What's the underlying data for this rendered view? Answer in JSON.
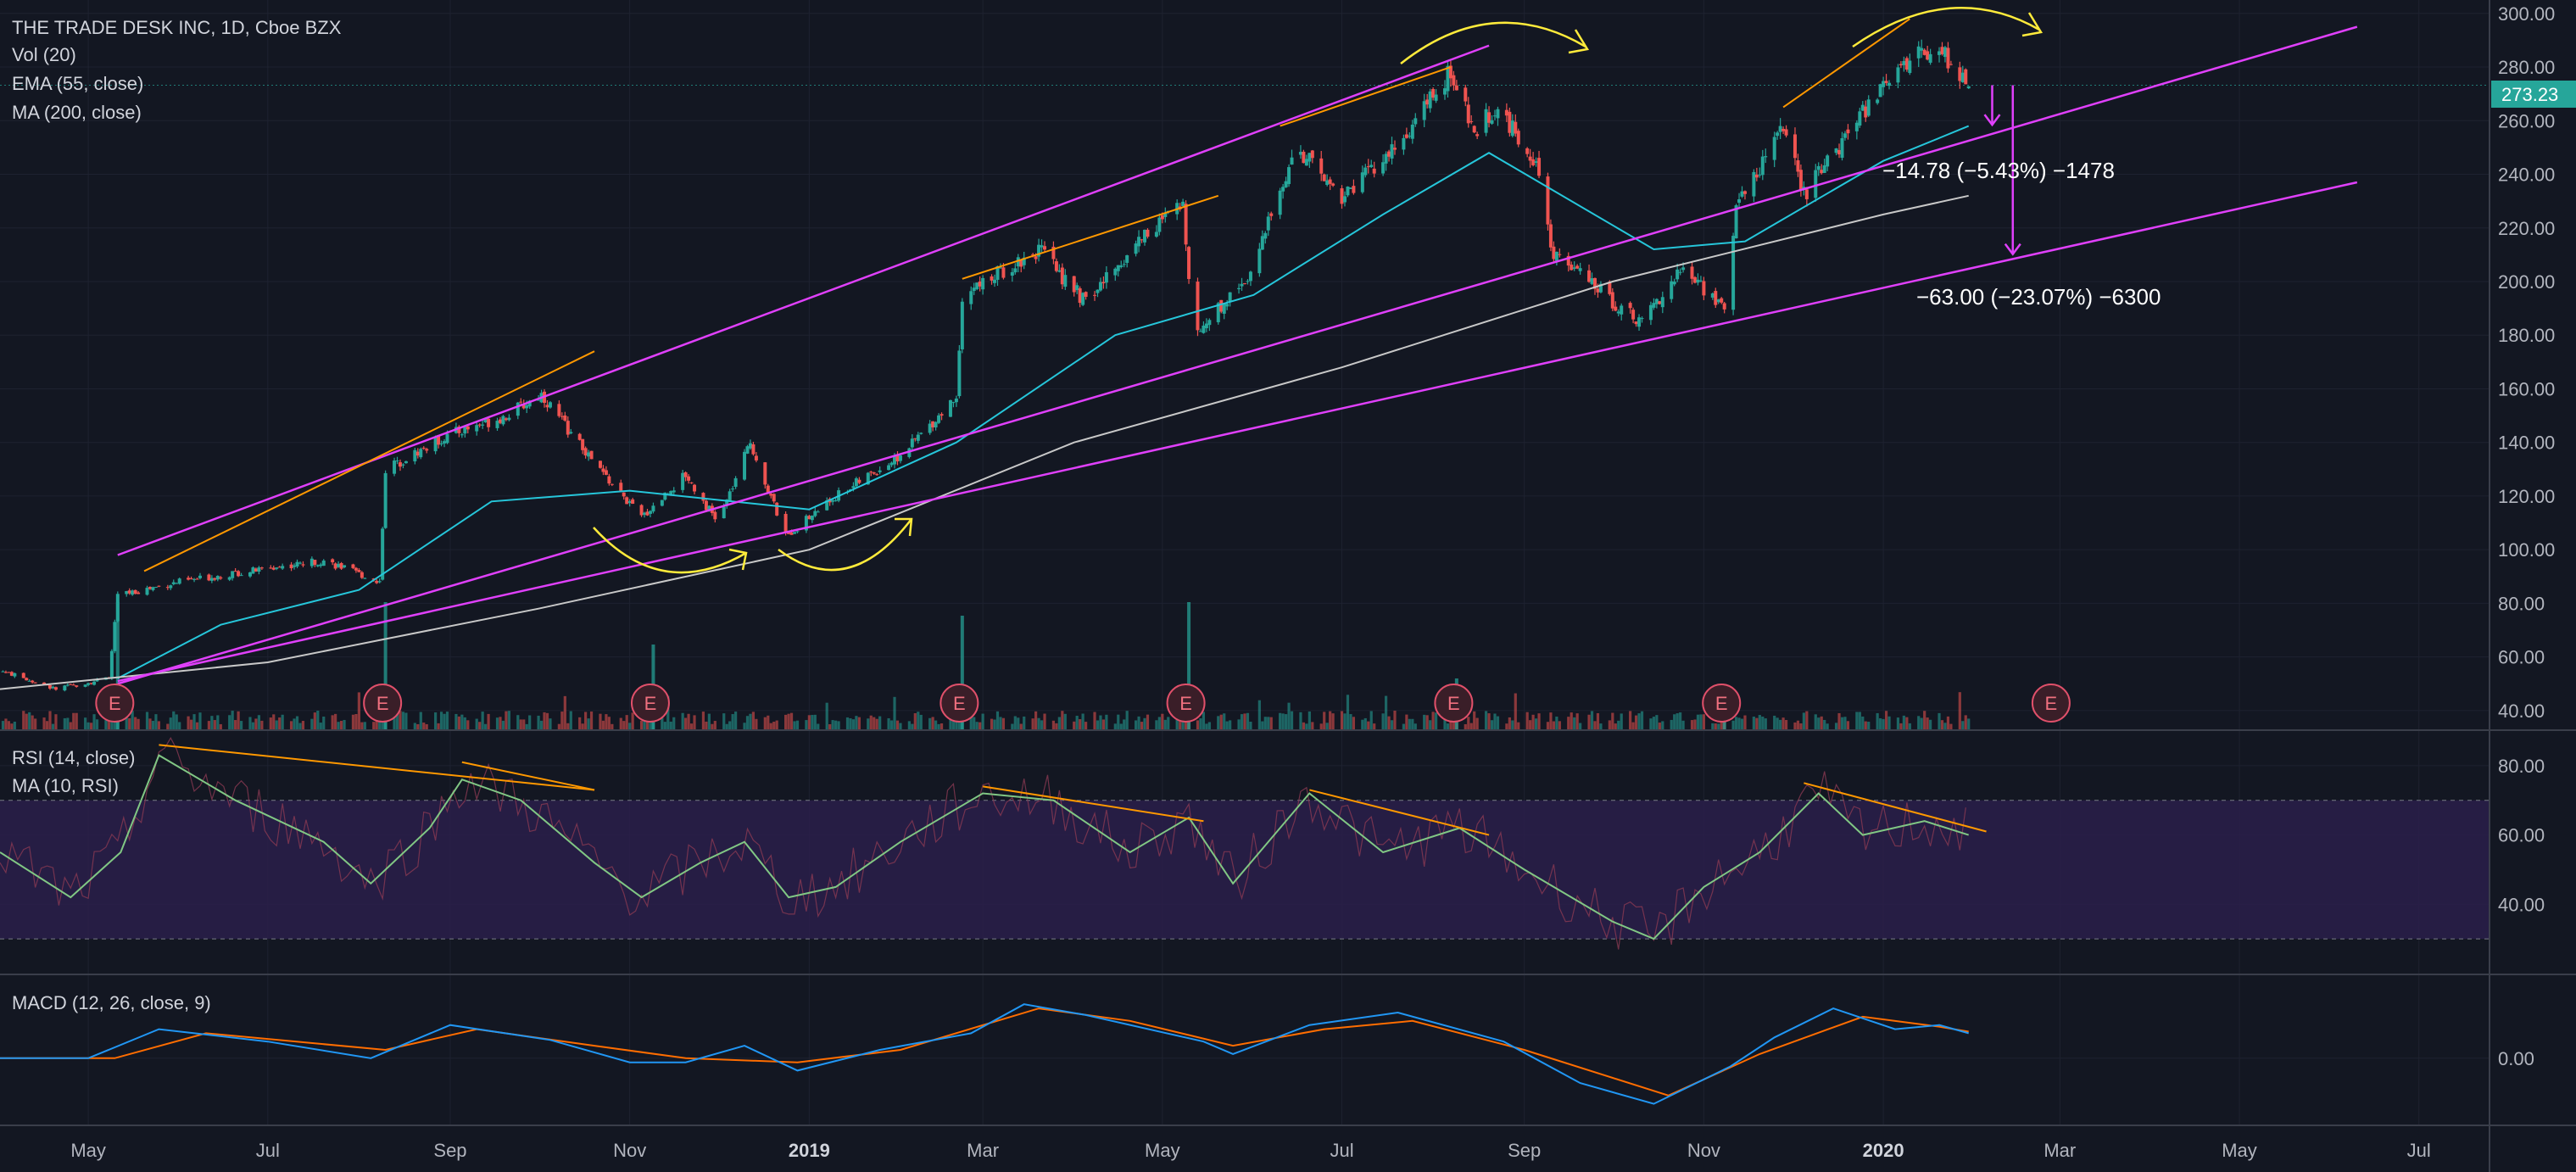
{
  "header": {
    "title": "THE TRADE DESK INC, 1D, Cboe BZX",
    "indicators": [
      "Vol (20)",
      "EMA (55, close)",
      "MA (200, close)"
    ]
  },
  "rsi_panel": {
    "labels": [
      "RSI (14, close)",
      "MA (10, RSI)"
    ]
  },
  "macd_panel": {
    "label": "MACD (12, 26, close, 9)"
  },
  "price_badge": "273.23",
  "annotations": {
    "drop_small": "−14.78 (−5.43%) −1478",
    "drop_large": "−63.00 (−23.07%) −6300"
  },
  "earnings_marker": "E",
  "colors": {
    "background": "#131722",
    "up": "#26a69a",
    "down": "#ef5350",
    "ema": "#26c6da",
    "ma": "#c8c8c8",
    "channel": "#e040fb",
    "trend": "#ff9800",
    "arc": "#ffeb3b",
    "rsi": "#81c784",
    "macd": "#2196f3",
    "signal": "#ff6d00",
    "badge": "#26a69a"
  },
  "chart_data": [
    {
      "type": "candlestick",
      "title": "THE TRADE DESK INC, 1D, Cboe BZX",
      "x_ticks": [
        "May",
        "Jul",
        "Sep",
        "Nov",
        "2019",
        "Mar",
        "May",
        "Jul",
        "Sep",
        "Nov",
        "2020",
        "Mar",
        "May",
        "Jul"
      ],
      "y_ticks": [
        300,
        280,
        260,
        240,
        220,
        200,
        180,
        160,
        140,
        120,
        100,
        80,
        60,
        40
      ],
      "ylim": [
        33,
        305
      ],
      "price_path": [
        [
          "2018-04-01",
          55
        ],
        [
          "2018-04-20",
          48
        ],
        [
          "2018-05-08",
          52
        ],
        [
          "2018-05-11",
          83
        ],
        [
          "2018-06-01",
          88
        ],
        [
          "2018-07-01",
          93
        ],
        [
          "2018-07-20",
          96
        ],
        [
          "2018-08-08",
          88
        ],
        [
          "2018-08-10",
          130
        ],
        [
          "2018-09-01",
          143
        ],
        [
          "2018-09-20",
          150
        ],
        [
          "2018-10-02",
          158
        ],
        [
          "2018-10-20",
          132
        ],
        [
          "2018-11-05",
          112
        ],
        [
          "2018-11-20",
          128
        ],
        [
          "2018-12-01",
          110
        ],
        [
          "2018-12-12",
          140
        ],
        [
          "2018-12-24",
          105
        ],
        [
          "2019-01-10",
          120
        ],
        [
          "2019-02-01",
          135
        ],
        [
          "2019-02-20",
          157
        ],
        [
          "2019-02-22",
          195
        ],
        [
          "2019-03-20",
          212
        ],
        [
          "2019-04-05",
          192
        ],
        [
          "2019-04-25",
          218
        ],
        [
          "2019-05-08",
          228
        ],
        [
          "2019-05-12",
          180
        ],
        [
          "2019-06-01",
          205
        ],
        [
          "2019-06-15",
          250
        ],
        [
          "2019-07-01",
          232
        ],
        [
          "2019-07-20",
          250
        ],
        [
          "2019-08-07",
          278
        ],
        [
          "2019-08-15",
          255
        ],
        [
          "2019-08-22",
          265
        ],
        [
          "2019-09-05",
          245
        ],
        [
          "2019-09-10",
          212
        ],
        [
          "2019-09-25",
          198
        ],
        [
          "2019-10-10",
          185
        ],
        [
          "2019-10-25",
          205
        ],
        [
          "2019-11-08",
          190
        ],
        [
          "2019-11-12",
          228
        ],
        [
          "2019-11-28",
          258
        ],
        [
          "2019-12-05",
          232
        ],
        [
          "2019-12-20",
          255
        ],
        [
          "2020-01-05",
          280
        ],
        [
          "2020-01-20",
          288
        ],
        [
          "2020-01-30",
          273.23
        ]
      ],
      "ema_55": [
        [
          "2018-05-11",
          52
        ],
        [
          "2018-06-15",
          72
        ],
        [
          "2018-08-01",
          85
        ],
        [
          "2018-09-15",
          118
        ],
        [
          "2018-11-01",
          122
        ],
        [
          "2019-01-01",
          115
        ],
        [
          "2019-02-20",
          140
        ],
        [
          "2019-04-15",
          180
        ],
        [
          "2019-06-01",
          195
        ],
        [
          "2019-07-15",
          225
        ],
        [
          "2019-08-20",
          248
        ],
        [
          "2019-10-15",
          212
        ],
        [
          "2019-11-15",
          215
        ],
        [
          "2020-01-01",
          245
        ],
        [
          "2020-01-30",
          258
        ]
      ],
      "ma_200": [
        [
          "2018-04-01",
          48
        ],
        [
          "2018-07-01",
          58
        ],
        [
          "2018-10-01",
          78
        ],
        [
          "2019-01-01",
          100
        ],
        [
          "2019-04-01",
          140
        ],
        [
          "2019-07-01",
          168
        ],
        [
          "2019-10-01",
          200
        ],
        [
          "2020-01-01",
          225
        ],
        [
          "2020-01-30",
          232
        ]
      ],
      "earnings_dates": [
        "2018-05-10",
        "2018-08-09",
        "2018-11-08",
        "2019-02-21",
        "2019-05-09",
        "2019-08-08",
        "2019-11-07",
        "2020-02-27"
      ],
      "last_price": 273.23,
      "channel_lines": [
        [
          [
            "2018-05-11",
            98
          ],
          [
            "2019-08-20",
            288
          ]
        ],
        [
          [
            "2018-05-11",
            50
          ],
          [
            "2020-06-10",
            295
          ]
        ],
        [
          [
            "2018-05-11",
            51
          ],
          [
            "2020-06-10",
            237
          ]
        ]
      ],
      "trend_lines": [
        [
          [
            "2018-05-20",
            92
          ],
          [
            "2018-10-20",
            174
          ]
        ],
        [
          [
            "2019-02-22",
            201
          ],
          [
            "2019-05-20",
            232
          ]
        ],
        [
          [
            "2019-06-10",
            258
          ],
          [
            "2019-08-07",
            280
          ]
        ],
        [
          [
            "2019-11-28",
            265
          ],
          [
            "2020-01-10",
            298
          ]
        ]
      ],
      "measurements": [
        {
          "from": [
            "2020-02-07",
            273.23
          ],
          "to": [
            "2020-02-07",
            258.45
          ],
          "label": "−14.78 (−5.43%) −1478"
        },
        {
          "from": [
            "2020-02-14",
            273.23
          ],
          "to": [
            "2020-02-14",
            210.23
          ],
          "label": "−63.00 (−23.07%) −6300"
        }
      ]
    },
    {
      "type": "line",
      "title": "RSI (14, close)",
      "y_ticks": [
        80,
        60,
        40
      ],
      "ylim": [
        20,
        90
      ],
      "bands": [
        30,
        70
      ],
      "rsi_ma_10": [
        [
          "2018-04-01",
          55
        ],
        [
          "2018-04-25",
          42
        ],
        [
          "2018-05-12",
          55
        ],
        [
          "2018-05-25",
          83
        ],
        [
          "2018-06-20",
          70
        ],
        [
          "2018-07-20",
          58
        ],
        [
          "2018-08-05",
          46
        ],
        [
          "2018-08-25",
          62
        ],
        [
          "2018-09-05",
          76
        ],
        [
          "2018-09-25",
          70
        ],
        [
          "2018-10-20",
          52
        ],
        [
          "2018-11-05",
          42
        ],
        [
          "2018-11-25",
          52
        ],
        [
          "2018-12-10",
          58
        ],
        [
          "2018-12-25",
          42
        ],
        [
          "2019-01-10",
          45
        ],
        [
          "2019-02-01",
          58
        ],
        [
          "2019-03-01",
          72
        ],
        [
          "2019-03-25",
          70
        ],
        [
          "2019-04-20",
          55
        ],
        [
          "2019-05-10",
          65
        ],
        [
          "2019-05-25",
          46
        ],
        [
          "2019-06-20",
          72
        ],
        [
          "2019-07-15",
          55
        ],
        [
          "2019-08-10",
          62
        ],
        [
          "2019-09-01",
          50
        ],
        [
          "2019-10-01",
          35
        ],
        [
          "2019-10-15",
          30
        ],
        [
          "2019-11-01",
          45
        ],
        [
          "2019-11-20",
          55
        ],
        [
          "2019-12-10",
          72
        ],
        [
          "2019-12-25",
          60
        ],
        [
          "2020-01-15",
          64
        ],
        [
          "2020-01-30",
          60
        ]
      ]
    },
    {
      "type": "line",
      "title": "MACD (12, 26, close, 9)",
      "y_ticks": [
        0
      ],
      "ylim": [
        -8,
        10
      ],
      "macd": [
        [
          "2018-04-01",
          0
        ],
        [
          "2018-05-01",
          0
        ],
        [
          "2018-05-25",
          3.5
        ],
        [
          "2018-07-01",
          2
        ],
        [
          "2018-08-05",
          0
        ],
        [
          "2018-09-01",
          4
        ],
        [
          "2018-10-05",
          2.2
        ],
        [
          "2018-11-01",
          -0.5
        ],
        [
          "2018-11-20",
          -0.5
        ],
        [
          "2018-12-10",
          1.5
        ],
        [
          "2018-12-28",
          -1.5
        ],
        [
          "2019-01-25",
          1
        ],
        [
          "2019-02-25",
          3
        ],
        [
          "2019-03-15",
          6.5
        ],
        [
          "2019-04-05",
          5.2
        ],
        [
          "2019-05-15",
          2
        ],
        [
          "2019-05-25",
          0.5
        ],
        [
          "2019-06-20",
          4
        ],
        [
          "2019-07-20",
          5.5
        ],
        [
          "2019-08-25",
          2
        ],
        [
          "2019-09-20",
          -3
        ],
        [
          "2019-10-15",
          -5.5
        ],
        [
          "2019-11-10",
          -1
        ],
        [
          "2019-11-25",
          2.5
        ],
        [
          "2019-12-15",
          6
        ],
        [
          "2020-01-05",
          3.5
        ],
        [
          "2020-01-20",
          4
        ],
        [
          "2020-01-30",
          3
        ]
      ],
      "signal": [
        [
          "2018-04-01",
          0
        ],
        [
          "2018-05-10",
          0
        ],
        [
          "2018-06-10",
          3
        ],
        [
          "2018-08-10",
          1
        ],
        [
          "2018-09-10",
          3.5
        ],
        [
          "2018-10-20",
          1.5
        ],
        [
          "2018-11-20",
          0
        ],
        [
          "2018-12-28",
          -0.5
        ],
        [
          "2019-02-01",
          1
        ],
        [
          "2019-03-20",
          6
        ],
        [
          "2019-04-20",
          4.5
        ],
        [
          "2019-05-25",
          1.5
        ],
        [
          "2019-06-25",
          3.5
        ],
        [
          "2019-07-25",
          4.5
        ],
        [
          "2019-09-01",
          1
        ],
        [
          "2019-10-20",
          -4.5
        ],
        [
          "2019-11-20",
          0.5
        ],
        [
          "2019-12-25",
          5
        ],
        [
          "2020-01-20",
          3.8
        ],
        [
          "2020-01-30",
          3.2
        ]
      ]
    }
  ]
}
